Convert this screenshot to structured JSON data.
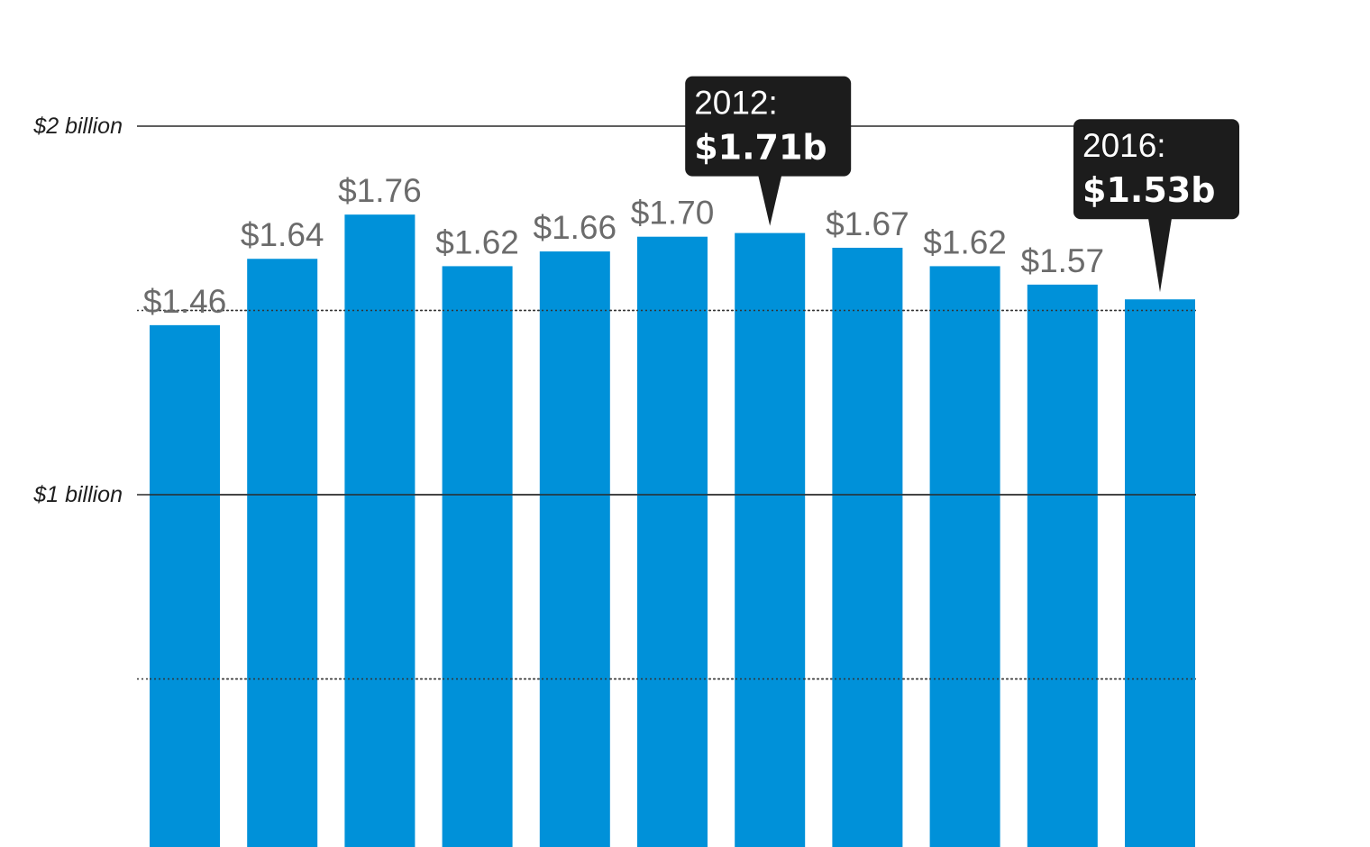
{
  "chart_data": {
    "type": "bar",
    "title": "",
    "xlabel": "",
    "ylabel": "",
    "ylim": [
      0,
      2
    ],
    "y_ticks": [
      {
        "value": 2,
        "label": "$2 billion",
        "style": "solid"
      },
      {
        "value": 1.5,
        "label": "",
        "style": "dotted"
      },
      {
        "value": 1,
        "label": "$1 billion",
        "style": "solid"
      },
      {
        "value": 0.5,
        "label": "",
        "style": "dotted"
      }
    ],
    "values": [
      1.46,
      1.64,
      1.76,
      1.62,
      1.66,
      1.7,
      1.71,
      1.67,
      1.62,
      1.57,
      1.53
    ],
    "data_labels": [
      "$1.46",
      "$1.64",
      "$1.76",
      "$1.62",
      "$1.66",
      "$1.70",
      "",
      "$1.67",
      "$1.62",
      "$1.57",
      ""
    ],
    "bar_color": "#0091d9",
    "callouts": [
      {
        "index": 6,
        "year": "2012:",
        "value": "$1.71b"
      },
      {
        "index": 10,
        "year": "2016:",
        "value": "$1.53b"
      }
    ],
    "callout_color": "#1c1c1c"
  }
}
